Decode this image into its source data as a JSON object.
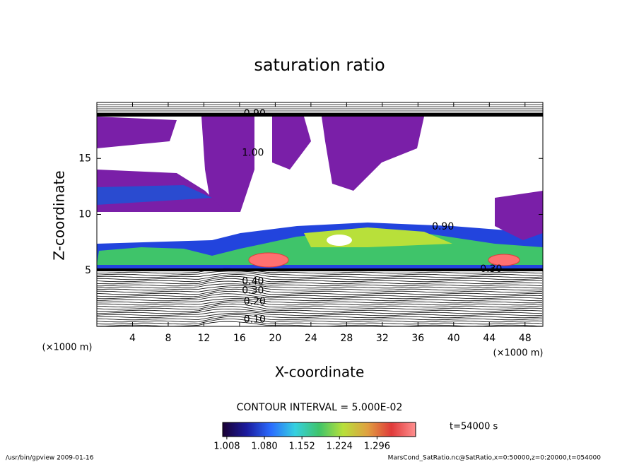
{
  "chart_data": {
    "type": "contour",
    "title": "saturation ratio",
    "x_label": "X-coordinate",
    "y_label": "Z-coordinate",
    "x_unit": "(×1000 m)",
    "y_unit": "(×1000 m)",
    "xlim": [
      0,
      50
    ],
    "ylim": [
      0,
      20
    ],
    "xticks": [
      4,
      8,
      12,
      16,
      20,
      24,
      28,
      32,
      36,
      40,
      44,
      48
    ],
    "yticks": [
      5,
      10,
      15
    ],
    "contour_labels": [
      {
        "text": "0.10",
        "x": 17.7,
        "y": 0.6
      },
      {
        "text": "0.20",
        "x": 17.7,
        "y": 2.2
      },
      {
        "text": "0.30",
        "x": 17.5,
        "y": 3.2
      },
      {
        "text": "0.40",
        "x": 17.5,
        "y": 4.0
      },
      {
        "text": "1.00",
        "x": 17.5,
        "y": 15.5
      },
      {
        "text": "0.90",
        "x": 17.7,
        "y": 19.0
      },
      {
        "text": "0.90",
        "x": 38.8,
        "y": 8.9
      },
      {
        "text": "0.30",
        "x": 44.2,
        "y": 5.1
      }
    ],
    "contour_interval": "CONTOUR INTERVAL = 5.000E-02",
    "colorbar": {
      "clim": [
        1.0,
        1.37
      ],
      "ticks": [
        {
          "value": 1.008,
          "label": "1.008"
        },
        {
          "value": 1.08,
          "label": "1.080"
        },
        {
          "value": 1.152,
          "label": "1.152"
        },
        {
          "value": 1.224,
          "label": "1.224"
        },
        {
          "value": 1.296,
          "label": "1.296"
        }
      ],
      "colors": [
        "#1a0033",
        "#1b1b9e",
        "#2a6cff",
        "#35d0e0",
        "#3fc46a",
        "#b8e03a",
        "#e0a040",
        "#e03a3a",
        "#ff9090"
      ]
    },
    "time_label": "t=54000 s",
    "footer_left": "/usr/bin/gpview  2009-01-16",
    "footer_right": "MarsCond_SatRatio.nc@SatRatio,x=0:50000,z=0:20000,t=054000"
  }
}
